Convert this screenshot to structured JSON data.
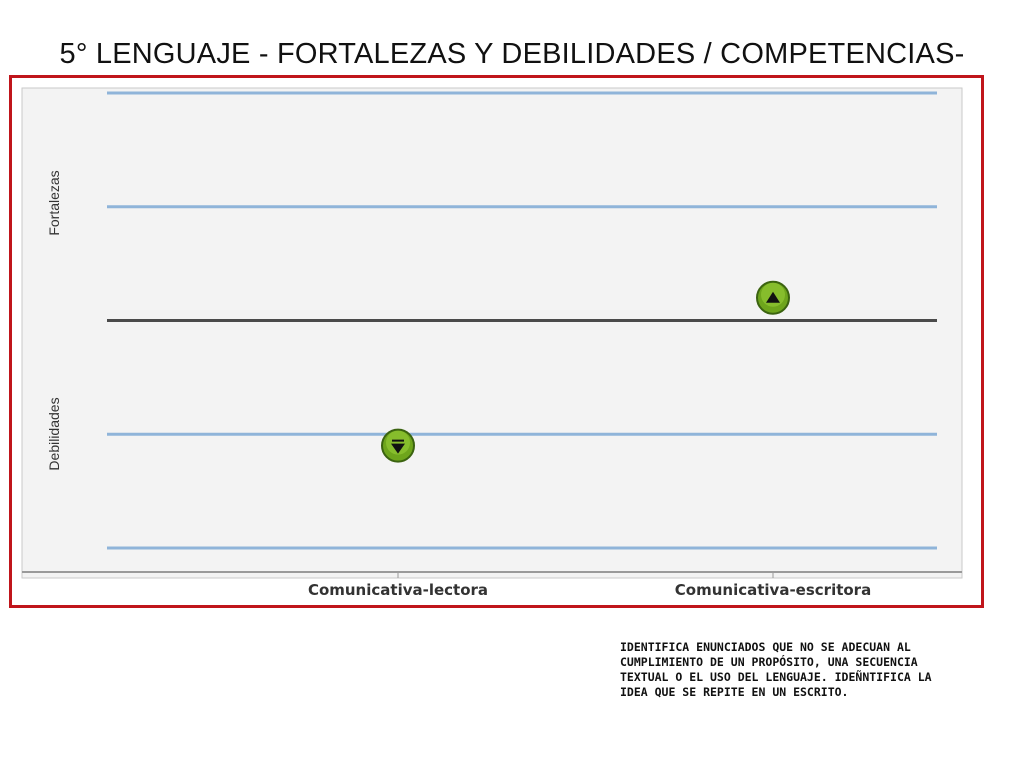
{
  "slide": {
    "title": "5° LENGUAJE - FORTALEZAS Y DEBILIDADES / COMPETENCIAS-",
    "note": "IDENTIFICA ENUNCIADOS QUE NO SE ADECUAN AL CUMPLIMIENTO DE UN PROPÓSITO, UNA SECUENCIA TEXTUAL O EL USO DEL LENGUAJE. IDEÑNTIFICA LA IDEA QUE SE REPITE EN UN ESCRITO."
  },
  "chart_data": {
    "type": "scatter",
    "categories": [
      "Comunicativa-lectora",
      "Comunicativa-escritora"
    ],
    "y_axis_labels": {
      "upper": "Fortalezas",
      "lower": "Debilidades"
    },
    "ylim": [
      -2,
      2
    ],
    "reference_line": 0,
    "grid": true,
    "points": [
      {
        "category": "Comunicativa-lectora",
        "value": -1.1,
        "marker": "down-arrow-icon"
      },
      {
        "category": "Comunicativa-escritora",
        "value": 0.2,
        "marker": "up-arrow-icon"
      }
    ],
    "colors": {
      "frame": "#c0151b",
      "plot_background": "#f3f3f3",
      "gridline": "#8fb4d9",
      "zero_line": "#4a4a4a",
      "marker_fill": "#6ea51c",
      "marker_stroke": "#3b6310"
    }
  }
}
